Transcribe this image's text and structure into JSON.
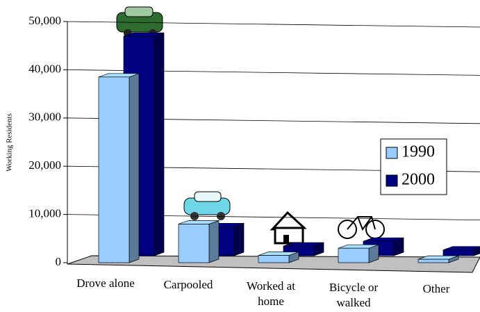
{
  "chart_data": {
    "type": "bar3d",
    "y_label": "Working Residents",
    "categories": [
      "Drove alone",
      "Carpooled",
      "Worked at home",
      "Bicycle or walked",
      "Other"
    ],
    "series": [
      {
        "name": "1990",
        "color": "#99ccff",
        "values": [
          38500,
          8000,
          1500,
          3000,
          700
        ]
      },
      {
        "name": "2000",
        "color": "#000080",
        "values": [
          45500,
          6000,
          2000,
          3000,
          1200
        ]
      }
    ],
    "ylim": [
      0,
      50000
    ],
    "yticks": [
      0,
      {
        "value": 10000,
        "label": "10,000"
      },
      {
        "value": 20000,
        "label": "20,000"
      },
      {
        "value": 30000,
        "label": "30,000"
      },
      {
        "value": 40000,
        "label": "40,000"
      },
      {
        "value": 50000,
        "label": "50,000"
      }
    ],
    "grid": true,
    "legend": "right"
  }
}
